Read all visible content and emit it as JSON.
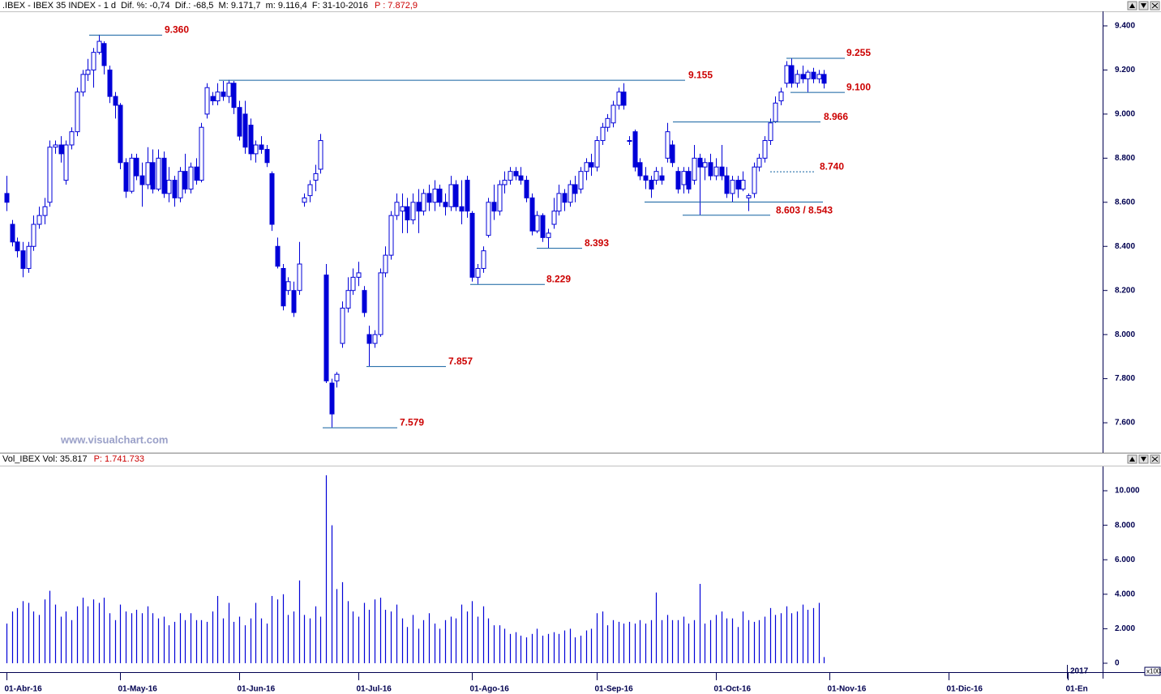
{
  "header": {
    "title": ".IBEX - IBEX 35 INDEX - 1 d  Dif. %: -0,74  Dif.: -68,5  M: 9.171,7  m: 9.116,4  F: 31-10-2016",
    "price": "P : 7.872,9"
  },
  "volume_header": {
    "title": "Vol_IBEX Vol: 35.817",
    "price": "P: 1.741.733"
  },
  "watermark": "www.visualchart.com",
  "chart_data": [
    {
      "type": "candlestick",
      "color": "#0000d8",
      "xlim": [
        -1.2,
        202
      ],
      "ylim": [
        7468,
        9466
      ],
      "yticks": [
        {
          "value": 7600,
          "label": "7.600"
        },
        {
          "value": 7800,
          "label": "7.800"
        },
        {
          "value": 8000,
          "label": "8.000"
        },
        {
          "value": 8200,
          "label": "8.200"
        },
        {
          "value": 8400,
          "label": "8.400"
        },
        {
          "value": 8600,
          "label": "8.600"
        },
        {
          "value": 8800,
          "label": "8.800"
        },
        {
          "value": 9000,
          "label": "9.000"
        },
        {
          "value": 9200,
          "label": "9.200"
        },
        {
          "value": 9400,
          "label": "9.400"
        }
      ],
      "ohlc": [
        [
          8640,
          8720,
          8560,
          8600
        ],
        [
          8500,
          8520,
          8400,
          8420
        ],
        [
          8420,
          8440,
          8350,
          8380
        ],
        [
          8380,
          8420,
          8260,
          8300
        ],
        [
          8300,
          8420,
          8280,
          8400
        ],
        [
          8400,
          8540,
          8380,
          8500
        ],
        [
          8500,
          8580,
          8480,
          8540
        ],
        [
          8540,
          8620,
          8500,
          8580
        ],
        [
          8600,
          8880,
          8580,
          8850
        ],
        [
          8850,
          8880,
          8820,
          8860
        ],
        [
          8860,
          8900,
          8780,
          8820
        ],
        [
          8700,
          8880,
          8680,
          8860
        ],
        [
          8860,
          8940,
          8840,
          8920
        ],
        [
          8920,
          9120,
          8900,
          9100
        ],
        [
          9100,
          9200,
          9080,
          9180
        ],
        [
          9180,
          9250,
          9150,
          9200
        ],
        [
          9200,
          9300,
          9120,
          9280
        ],
        [
          9280,
          9360,
          9270,
          9330
        ],
        [
          9320,
          9330,
          9180,
          9220
        ],
        [
          9200,
          9220,
          9050,
          9080
        ],
        [
          9080,
          9100,
          8980,
          9040
        ],
        [
          9040,
          9050,
          8750,
          8780
        ],
        [
          8780,
          8800,
          8620,
          8650
        ],
        [
          8650,
          8820,
          8640,
          8800
        ],
        [
          8800,
          8820,
          8700,
          8720
        ],
        [
          8720,
          8780,
          8580,
          8680
        ],
        [
          8680,
          8850,
          8660,
          8780
        ],
        [
          8780,
          8840,
          8640,
          8660
        ],
        [
          8660,
          8840,
          8650,
          8800
        ],
        [
          8800,
          8830,
          8620,
          8640
        ],
        [
          8640,
          8760,
          8600,
          8700
        ],
        [
          8700,
          8720,
          8580,
          8620
        ],
        [
          8620,
          8760,
          8600,
          8740
        ],
        [
          8740,
          8820,
          8640,
          8660
        ],
        [
          8660,
          8780,
          8640,
          8760
        ],
        [
          8760,
          8800,
          8680,
          8700
        ],
        [
          8700,
          8960,
          8690,
          8940
        ],
        [
          9000,
          9140,
          8980,
          9120
        ],
        [
          9080,
          9100,
          9040,
          9060
        ],
        [
          9060,
          9140,
          9040,
          9100
        ],
        [
          9100,
          9150,
          9060,
          9080
        ],
        [
          9080,
          9155,
          9050,
          9140
        ],
        [
          9140,
          9150,
          9000,
          9030
        ],
        [
          9030,
          9060,
          8880,
          8900
        ],
        [
          9000,
          9060,
          8820,
          8850
        ],
        [
          8950,
          8980,
          8790,
          8820
        ],
        [
          8820,
          8880,
          8780,
          8860
        ],
        [
          8860,
          8900,
          8820,
          8840
        ],
        [
          8840,
          8860,
          8760,
          8780
        ],
        [
          8730,
          8740,
          8470,
          8500
        ],
        [
          8400,
          8440,
          8300,
          8310
        ],
        [
          8300,
          8320,
          8110,
          8130
        ],
        [
          8200,
          8260,
          8180,
          8240
        ],
        [
          8200,
          8240,
          8080,
          8100
        ],
        [
          8200,
          8420,
          8180,
          8320
        ],
        [
          8600,
          8640,
          8580,
          8620
        ],
        [
          8630,
          8700,
          8600,
          8680
        ],
        [
          8700,
          8770,
          8650,
          8730
        ],
        [
          8750,
          8910,
          8730,
          8880
        ],
        [
          8270,
          8320,
          7780,
          7790
        ],
        [
          7780,
          7800,
          7579,
          7640
        ],
        [
          7790,
          7830,
          7760,
          7820
        ],
        [
          7960,
          8150,
          7940,
          8120
        ],
        [
          8120,
          8260,
          8100,
          8200
        ],
        [
          8200,
          8300,
          8180,
          8260
        ],
        [
          8260,
          8330,
          8220,
          8280
        ],
        [
          8200,
          8220,
          8080,
          8100
        ],
        [
          8000,
          8040,
          7857,
          7960
        ],
        [
          7960,
          8020,
          7940,
          8000
        ],
        [
          8000,
          8300,
          7990,
          8280
        ],
        [
          8280,
          8400,
          8260,
          8360
        ],
        [
          8360,
          8560,
          8340,
          8540
        ],
        [
          8540,
          8640,
          8520,
          8600
        ],
        [
          8560,
          8640,
          8460,
          8580
        ],
        [
          8580,
          8620,
          8460,
          8520
        ],
        [
          8520,
          8640,
          8500,
          8600
        ],
        [
          8600,
          8660,
          8460,
          8560
        ],
        [
          8560,
          8660,
          8540,
          8640
        ],
        [
          8640,
          8680,
          8560,
          8600
        ],
        [
          8600,
          8700,
          8560,
          8660
        ],
        [
          8660,
          8680,
          8580,
          8600
        ],
        [
          8600,
          8640,
          8540,
          8580
        ],
        [
          8580,
          8720,
          8560,
          8680
        ],
        [
          8680,
          8700,
          8560,
          8580
        ],
        [
          8580,
          8700,
          8500,
          8560
        ],
        [
          8700,
          8720,
          8530,
          8560
        ],
        [
          8550,
          8560,
          8240,
          8260
        ],
        [
          8260,
          8320,
          8229,
          8300
        ],
        [
          8300,
          8400,
          8280,
          8380
        ],
        [
          8450,
          8620,
          8440,
          8600
        ],
        [
          8600,
          8680,
          8520,
          8560
        ],
        [
          8560,
          8700,
          8540,
          8680
        ],
        [
          8680,
          8740,
          8640,
          8700
        ],
        [
          8700,
          8760,
          8680,
          8740
        ],
        [
          8740,
          8760,
          8700,
          8720
        ],
        [
          8720,
          8760,
          8680,
          8700
        ],
        [
          8700,
          8720,
          8600,
          8620
        ],
        [
          8620,
          8640,
          8450,
          8470
        ],
        [
          8470,
          8560,
          8460,
          8540
        ],
        [
          8540,
          8550,
          8420,
          8440
        ],
        [
          8440,
          8480,
          8393,
          8460
        ],
        [
          8500,
          8620,
          8480,
          8560
        ],
        [
          8560,
          8680,
          8540,
          8640
        ],
        [
          8640,
          8660,
          8560,
          8600
        ],
        [
          8600,
          8700,
          8580,
          8680
        ],
        [
          8680,
          8720,
          8600,
          8640
        ],
        [
          8660,
          8760,
          8640,
          8740
        ],
        [
          8740,
          8800,
          8700,
          8780
        ],
        [
          8780,
          8820,
          8720,
          8760
        ],
        [
          8760,
          8900,
          8740,
          8880
        ],
        [
          8880,
          8960,
          8860,
          8940
        ],
        [
          8940,
          9000,
          8920,
          8980
        ],
        [
          8960,
          9060,
          8940,
          9040
        ],
        [
          9040,
          9120,
          9020,
          9100
        ],
        [
          9100,
          9140,
          9020,
          9040
        ],
        [
          8880,
          8900,
          8860,
          8880
        ],
        [
          8920,
          8930,
          8740,
          8760
        ],
        [
          8780,
          8800,
          8700,
          8720
        ],
        [
          8720,
          8760,
          8660,
          8700
        ],
        [
          8700,
          8720,
          8620,
          8660
        ],
        [
          8700,
          8760,
          8680,
          8740
        ],
        [
          8720,
          8760,
          8680,
          8700
        ],
        [
          8800,
          8960,
          8780,
          8920
        ],
        [
          8860,
          8880,
          8760,
          8780
        ],
        [
          8740,
          8760,
          8640,
          8660
        ],
        [
          8680,
          8760,
          8640,
          8740
        ],
        [
          8740,
          8760,
          8640,
          8660
        ],
        [
          8700,
          8860,
          8680,
          8800
        ],
        [
          8800,
          8820,
          8543,
          8760
        ],
        [
          8760,
          8800,
          8700,
          8780
        ],
        [
          8780,
          8820,
          8700,
          8720
        ],
        [
          8720,
          8800,
          8700,
          8760
        ],
        [
          8760,
          8860,
          8700,
          8720
        ],
        [
          8720,
          8760,
          8620,
          8640
        ],
        [
          8640,
          8720,
          8600,
          8700
        ],
        [
          8700,
          8720,
          8620,
          8660
        ],
        [
          8660,
          8740,
          8650,
          8700
        ],
        [
          8620,
          8640,
          8560,
          8630
        ],
        [
          8640,
          8780,
          8620,
          8760
        ],
        [
          8760,
          8820,
          8740,
          8800
        ],
        [
          8800,
          8900,
          8780,
          8880
        ],
        [
          8880,
          8980,
          8860,
          8960
        ],
        [
          8966,
          9080,
          8960,
          9050
        ],
        [
          9060,
          9120,
          9040,
          9100
        ],
        [
          9140,
          9240,
          9120,
          9220
        ],
        [
          9220,
          9255,
          9120,
          9140
        ],
        [
          9140,
          9200,
          9120,
          9180
        ],
        [
          9180,
          9220,
          9140,
          9160
        ],
        [
          9160,
          9200,
          9100,
          9190
        ],
        [
          9190,
          9210,
          9140,
          9160
        ],
        [
          9160,
          9200,
          9140,
          9180
        ],
        [
          9180,
          9200,
          9116,
          9140
        ]
      ],
      "annotations": [
        {
          "value": 9360,
          "label": "9.360"
        },
        {
          "value": 9155,
          "label": "9.155"
        },
        {
          "value": 9255,
          "label": "9.255"
        },
        {
          "value": 9100,
          "label": "9.100"
        },
        {
          "value": 8966,
          "label": "8.966"
        },
        {
          "value": 8740,
          "label": "8.740"
        },
        {
          "values": [
            8603,
            8543
          ],
          "label": "8.603 / 8.543"
        },
        {
          "value": 8393,
          "label": "8.393"
        },
        {
          "value": 8229,
          "label": "8.229"
        },
        {
          "value": 7857,
          "label": "7.857"
        },
        {
          "value": 7579,
          "label": "7.579"
        }
      ]
    },
    {
      "type": "bar",
      "color": "#0000d8",
      "xlim": [
        -1.2,
        202
      ],
      "ylim": [
        -516,
        11315
      ],
      "yticks": [
        0,
        {
          "value": 2000,
          "label": "2.000"
        },
        {
          "value": 4000,
          "label": "4.000"
        },
        {
          "value": 6000,
          "label": "6.000"
        },
        {
          "value": 8000,
          "label": "8.000"
        },
        {
          "value": 10000,
          "label": "10.000"
        }
      ],
      "y_unit": "x100",
      "xticks": [
        {
          "value": 0,
          "label": "01-Abr-16"
        },
        {
          "value": 21,
          "label": "01-May-16"
        },
        {
          "value": 43,
          "label": "01-Jun-16"
        },
        {
          "value": 65,
          "label": "01-Jul-16"
        },
        {
          "value": 86,
          "label": "01-Ago-16"
        },
        {
          "value": 109,
          "label": "01-Sep-16"
        },
        {
          "value": 131,
          "label": "01-Oct-16"
        },
        {
          "value": 152,
          "label": "01-Nov-16"
        },
        {
          "value": 174,
          "label": "01-Dic-16"
        },
        {
          "value": 196,
          "label": "01-En"
        }
      ],
      "year_label": "2017",
      "values": [
        2300,
        3000,
        3200,
        3600,
        3500,
        3000,
        2800,
        3700,
        4200,
        3400,
        2700,
        3000,
        2500,
        3300,
        3800,
        3300,
        3700,
        3500,
        3800,
        2900,
        2500,
        3400,
        3000,
        2900,
        3100,
        2900,
        3300,
        2900,
        2600,
        2700,
        2200,
        2400,
        2900,
        2500,
        2900,
        2500,
        2500,
        2400,
        3000,
        3900,
        2600,
        3500,
        2400,
        2700,
        2200,
        2600,
        3500,
        2600,
        2300,
        3900,
        3700,
        4000,
        2800,
        3000,
        4800,
        2800,
        2600,
        3300,
        2700,
        10900,
        8000,
        4300,
        4700,
        3600,
        3000,
        2700,
        3500,
        3100,
        3700,
        3800,
        3100,
        3000,
        3400,
        2600,
        2100,
        2800,
        2000,
        2500,
        2900,
        2300,
        2000,
        2500,
        2700,
        2600,
        3400,
        3000,
        3600,
        2700,
        3300,
        2600,
        2200,
        2200,
        2000,
        1700,
        1800,
        1600,
        1500,
        1700,
        2000,
        1600,
        1700,
        1800,
        1700,
        1900,
        2000,
        1500,
        1600,
        1900,
        2000,
        2900,
        3000,
        2200,
        2500,
        2400,
        2300,
        2400,
        2300,
        2500,
        2300,
        2500,
        4100,
        2500,
        2800,
        2500,
        2500,
        2700,
        2300,
        2500,
        4600,
        2300,
        2500,
        2800,
        3000,
        2600,
        2600,
        2100,
        3000,
        2500,
        2400,
        2500,
        2700,
        3200,
        2800,
        2900,
        3300,
        2900,
        3000,
        3400,
        3100,
        3200,
        3500,
        358
      ]
    }
  ]
}
